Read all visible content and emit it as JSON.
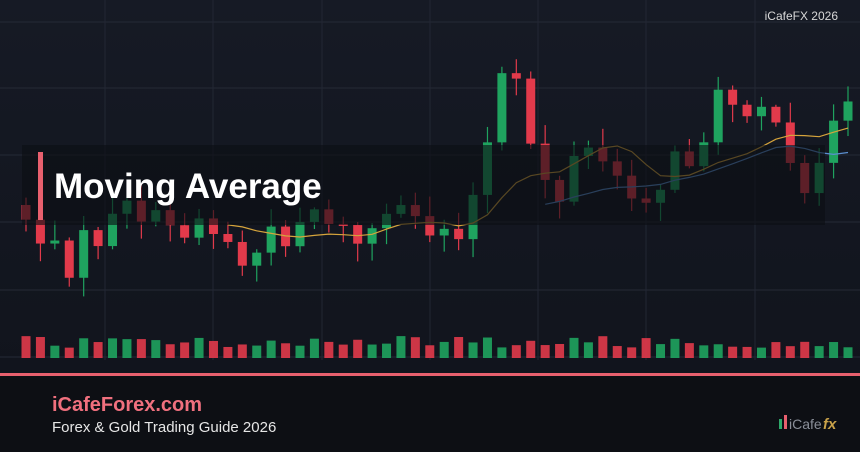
{
  "watermark": "iCafeFX 2026",
  "title": "Moving Average",
  "footer": {
    "site": "iCafeForex.com",
    "subtitle": "Forex & Gold Trading Guide 2026"
  },
  "logo": {
    "name": "iCafe",
    "suffix": "fx"
  }
}
